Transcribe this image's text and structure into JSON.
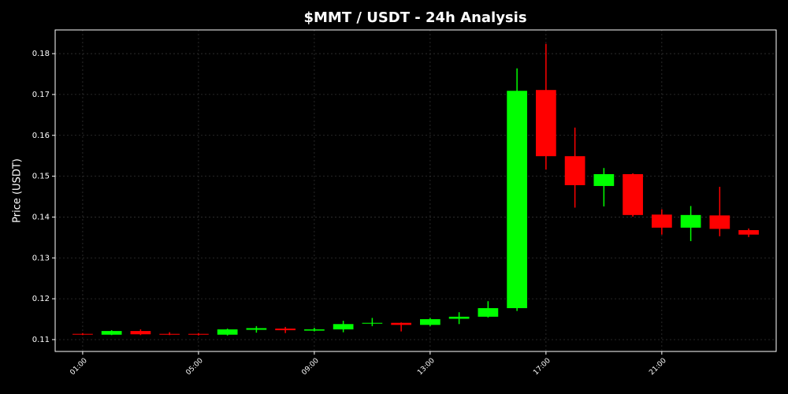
{
  "chart_data": {
    "type": "candlestick",
    "title": "$MMT / USDT - 24h Analysis",
    "y_label": "Price (USDT)",
    "x": [
      1,
      2,
      3,
      4,
      5,
      6,
      7,
      8,
      9,
      10,
      11,
      12,
      13,
      14,
      15,
      16,
      17,
      18,
      19,
      20,
      21,
      22,
      23,
      24
    ],
    "open": [
      0.1114,
      0.1112,
      0.1121,
      0.1114,
      0.1114,
      0.1112,
      0.1124,
      0.1127,
      0.1122,
      0.1125,
      0.1139,
      0.1141,
      0.1136,
      0.1151,
      0.1156,
      0.1177,
      0.1711,
      0.1549,
      0.1476,
      0.1505,
      0.1406,
      0.1374,
      0.1404,
      0.1368
    ],
    "high": [
      0.1116,
      0.1123,
      0.1125,
      0.1118,
      0.1116,
      0.1127,
      0.1133,
      0.1131,
      0.1129,
      0.1146,
      0.1153,
      0.1142,
      0.1153,
      0.1167,
      0.1194,
      0.1764,
      0.1824,
      0.1619,
      0.152,
      0.1507,
      0.1419,
      0.1427,
      0.1474,
      0.1372
    ],
    "low": [
      0.1111,
      0.1111,
      0.1111,
      0.1111,
      0.111,
      0.111,
      0.1117,
      0.1116,
      0.112,
      0.1118,
      0.1133,
      0.112,
      0.1133,
      0.1138,
      0.1154,
      0.117,
      0.1516,
      0.1423,
      0.1426,
      0.1401,
      0.1357,
      0.1341,
      0.1353,
      0.1351
    ],
    "close": [
      0.1113,
      0.1121,
      0.1113,
      0.1112,
      0.1112,
      0.1125,
      0.1128,
      0.1123,
      0.1125,
      0.1138,
      0.1141,
      0.1136,
      0.115,
      0.1156,
      0.1177,
      0.1709,
      0.1549,
      0.1478,
      0.1505,
      0.1405,
      0.1374,
      0.1405,
      0.1371,
      0.1357
    ],
    "up_color": "#00ff00",
    "down_color": "#ff0000",
    "xlim": [
      0.05,
      24.95
    ],
    "ylim": [
      0.1071,
      0.1858
    ],
    "xticks": [
      {
        "value": 1,
        "label": "01:00"
      },
      {
        "value": 5,
        "label": "05:00"
      },
      {
        "value": 9,
        "label": "09:00"
      },
      {
        "value": 13,
        "label": "13:00"
      },
      {
        "value": 17,
        "label": "17:00"
      },
      {
        "value": 21,
        "label": "21:00"
      }
    ],
    "yticks": [
      0.11,
      0.12,
      0.13,
      0.14,
      0.15,
      0.16,
      0.17,
      0.18
    ],
    "grid": true
  }
}
